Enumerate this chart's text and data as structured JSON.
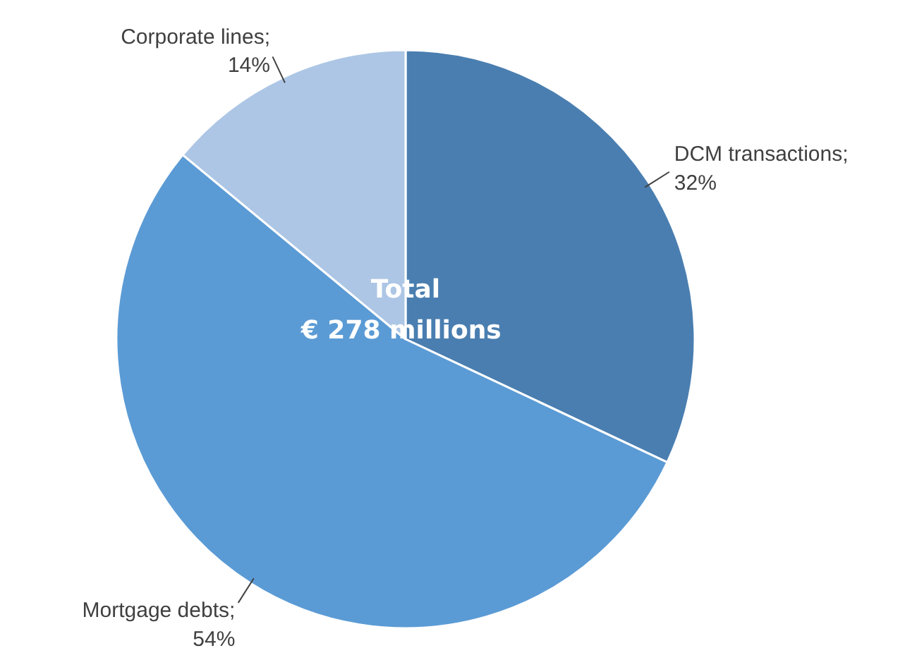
{
  "chart_data": {
    "type": "pie",
    "categories": [
      "DCM transactions",
      "Mortgage debts",
      "Corporate lines"
    ],
    "value_labels": [
      ";\n32%",
      ";\n54%",
      ";\n14%"
    ],
    "values": [
      32,
      54,
      14
    ],
    "colors": [
      "#4a7eb0",
      "#5b9bd5",
      "#adc6e5"
    ],
    "annotations": [
      "Total\n€  278 millions"
    ]
  }
}
